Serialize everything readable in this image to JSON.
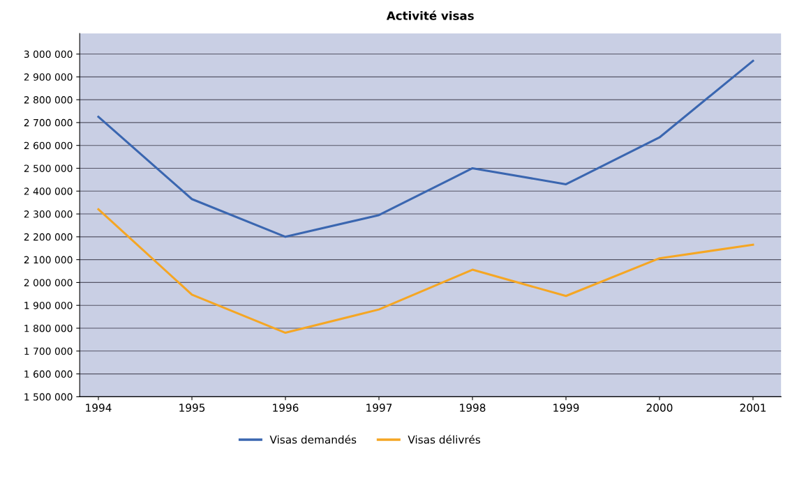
{
  "chart_data": {
    "type": "line",
    "title": "Activité visas",
    "x": [
      1994,
      1995,
      1996,
      1997,
      1998,
      1999,
      2000,
      2001
    ],
    "series": [
      {
        "name": "Visas demandés",
        "color": "#3a66b0",
        "values": [
          2725000,
          2365000,
          2200000,
          2295000,
          2500000,
          2430000,
          2635000,
          2970000
        ]
      },
      {
        "name": "Visas délivrés",
        "color": "#f5a623",
        "values": [
          2320000,
          1947000,
          1780000,
          1882000,
          2056000,
          1941000,
          2106000,
          2165000
        ]
      }
    ],
    "xlim": [
      1993.8,
      2001.3
    ],
    "xticks": [
      1994,
      1995,
      1996,
      1997,
      1998,
      1999,
      2000,
      2001
    ],
    "ylim": [
      1500000,
      3090000
    ],
    "yticks": [
      {
        "value": 1500000,
        "label": "1 500 000"
      },
      {
        "value": 1600000,
        "label": "1 600 000"
      },
      {
        "value": 1700000,
        "label": "1 700 000"
      },
      {
        "value": 1800000,
        "label": "1 800 000"
      },
      {
        "value": 1900000,
        "label": "1 900 000"
      },
      {
        "value": 2000000,
        "label": "2 000 000"
      },
      {
        "value": 2100000,
        "label": "2 100 000"
      },
      {
        "value": 2200000,
        "label": "2 200 000"
      },
      {
        "value": 2300000,
        "label": "2 300 000"
      },
      {
        "value": 2400000,
        "label": "2 400 000"
      },
      {
        "value": 2500000,
        "label": "2 500 000"
      },
      {
        "value": 2600000,
        "label": "2 600 000"
      },
      {
        "value": 2700000,
        "label": "2 700 000"
      },
      {
        "value": 2800000,
        "label": "2 800 000"
      },
      {
        "value": 2900000,
        "label": "2 900 000"
      },
      {
        "value": 3000000,
        "label": "3 000 000"
      }
    ],
    "grid": "y",
    "legend": "bottom",
    "marker": "none",
    "line_style": "solid"
  }
}
